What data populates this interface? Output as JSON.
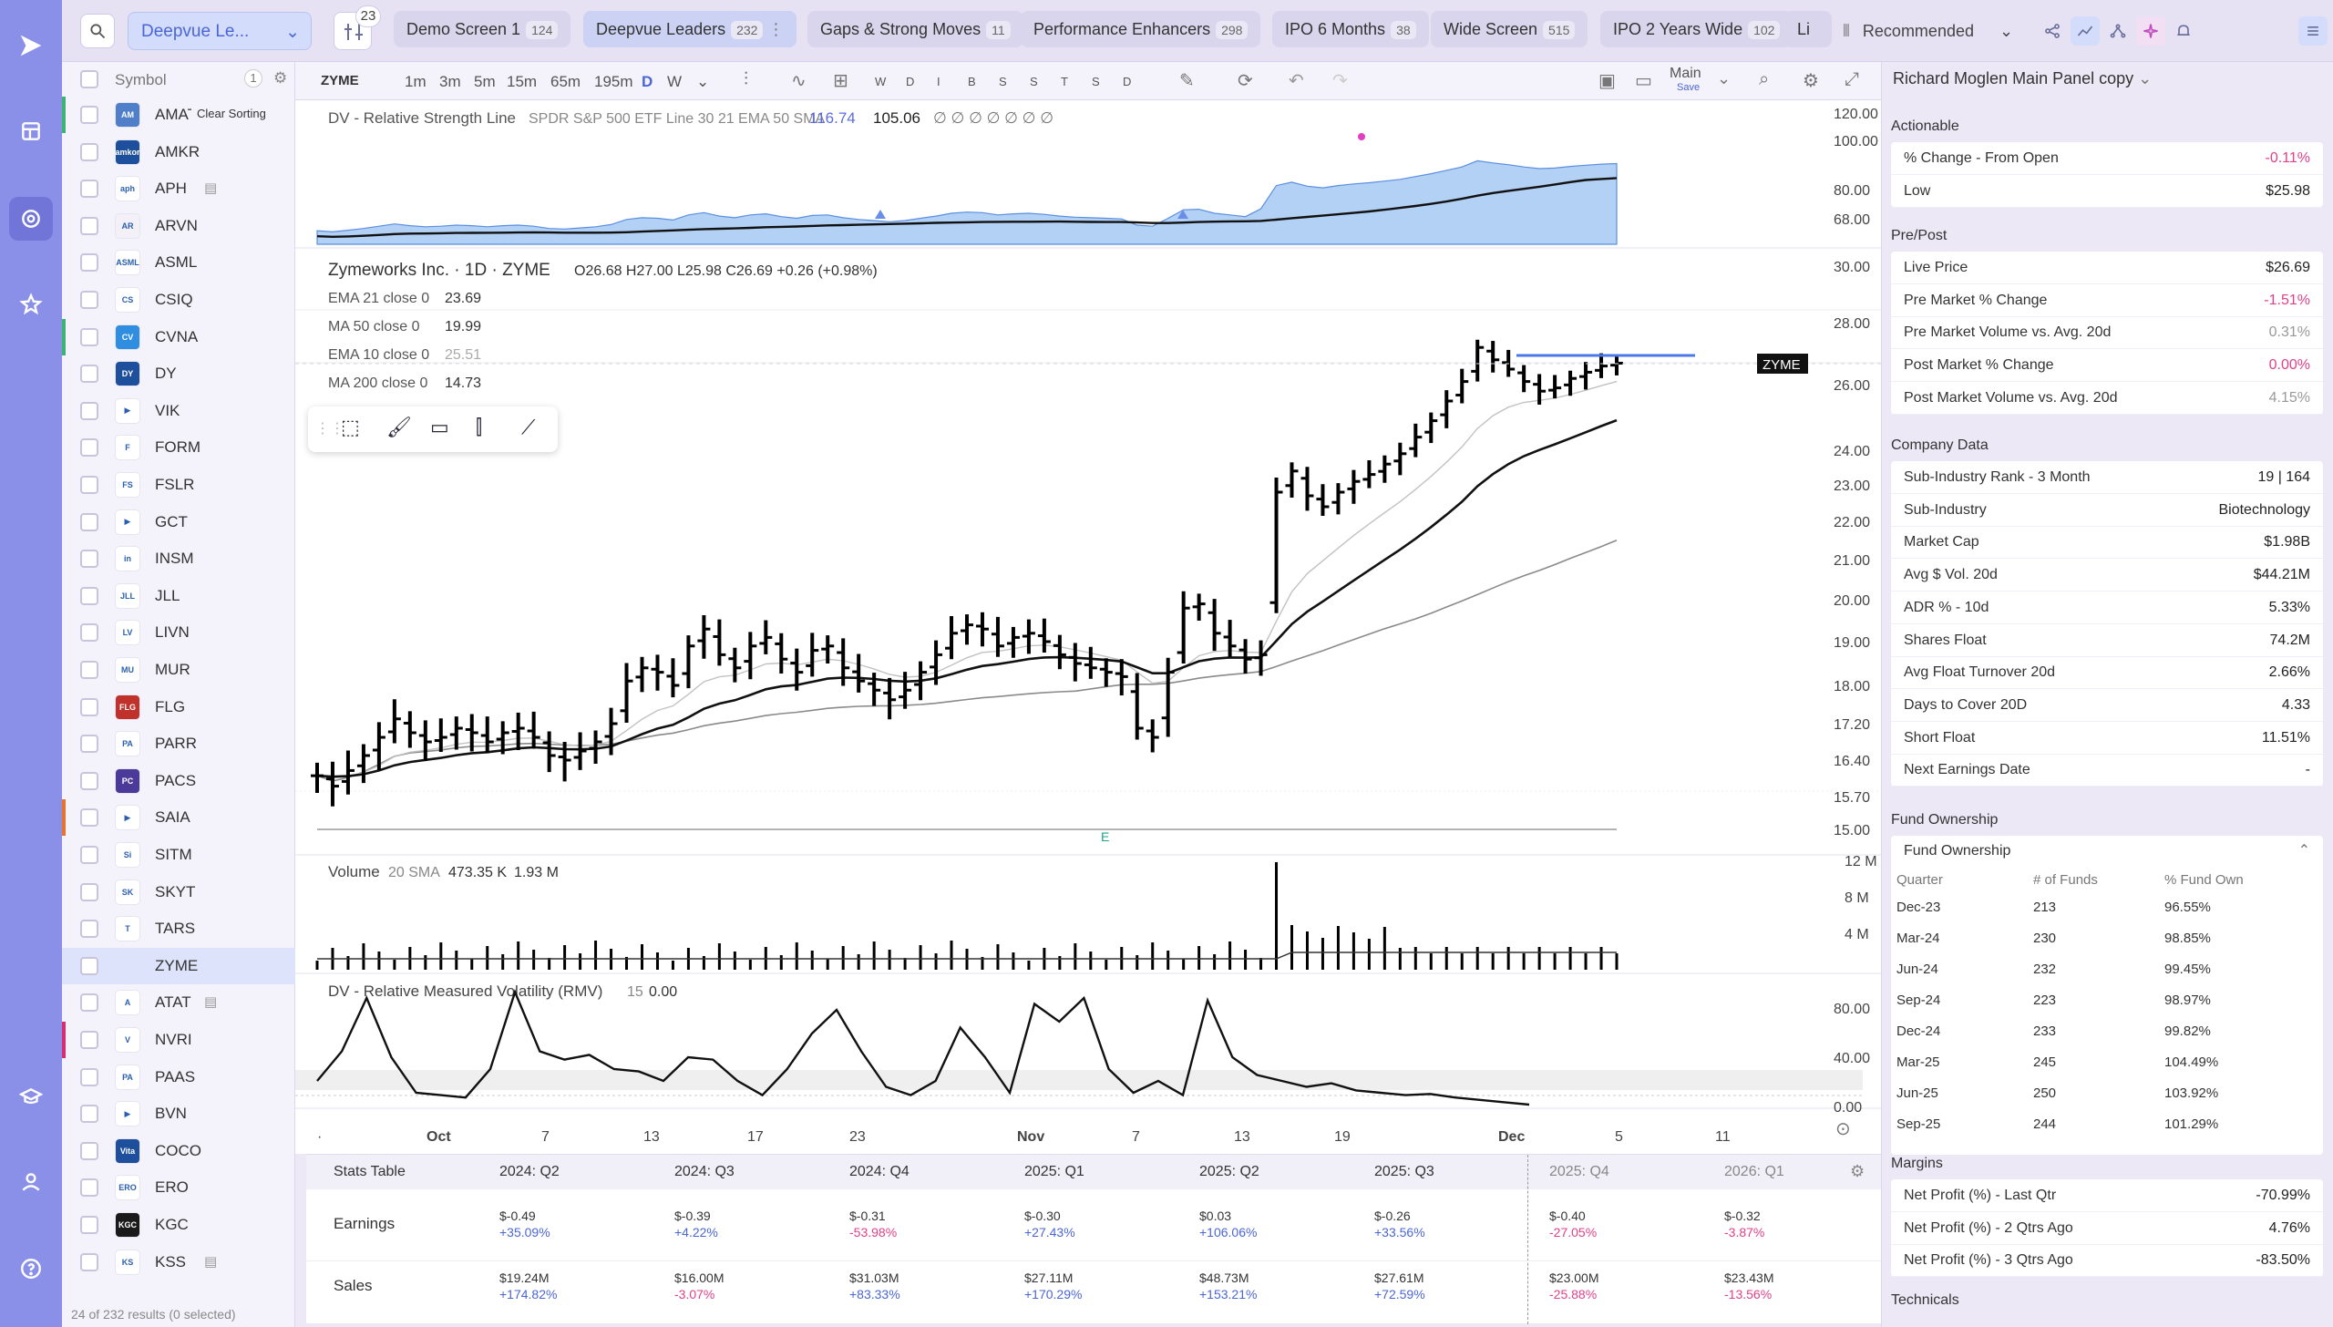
{
  "topbar": {
    "screen_select": "Deepvue Le...",
    "filter_count": "23",
    "tabs": [
      {
        "label": "Demo Screen 1",
        "count": "124"
      },
      {
        "label": "Deepvue Leaders",
        "count": "232"
      },
      {
        "label": "Gaps & Strong Moves",
        "count": "11"
      },
      {
        "label": "Performance Enhancers",
        "count": "298"
      },
      {
        "label": "IPO 6 Months",
        "count": "38"
      },
      {
        "label": "Wide Screen",
        "count": "515"
      },
      {
        "label": "IPO 2 Years Wide",
        "count": "102"
      },
      {
        "label": "Li",
        "count": ""
      }
    ],
    "sort_label": "Recommended"
  },
  "watchlist": {
    "header": "Symbol",
    "header_count": "1",
    "tooltip": "Clear Sorting",
    "footer": "24 of 232 results (0 selected)",
    "rows": [
      {
        "sym": "AMAT",
        "logo": "AM",
        "color": "#4f7fc9",
        "bar": "#3cb371"
      },
      {
        "sym": "AMKR",
        "logo": "amkor",
        "color": "#1e4f9c",
        "bar": ""
      },
      {
        "sym": "APH",
        "logo": "aph",
        "color": "#ffffff",
        "bar": "",
        "note": true
      },
      {
        "sym": "ARVN",
        "logo": "AR",
        "color": "#f3f0f8",
        "bar": ""
      },
      {
        "sym": "ASML",
        "logo": "ASML",
        "color": "#ffffff",
        "bar": ""
      },
      {
        "sym": "CSIQ",
        "logo": "CS",
        "color": "#ffffff",
        "bar": ""
      },
      {
        "sym": "CVNA",
        "logo": "CV",
        "color": "#2f8ee0",
        "bar": "#3cb371"
      },
      {
        "sym": "DY",
        "logo": "DY",
        "color": "#1e4f9c",
        "bar": ""
      },
      {
        "sym": "VIK",
        "logo": "▶",
        "color": "#ffffff",
        "bar": ""
      },
      {
        "sym": "FORM",
        "logo": "F",
        "color": "#ffffff",
        "bar": ""
      },
      {
        "sym": "FSLR",
        "logo": "FS",
        "color": "#ffffff",
        "bar": ""
      },
      {
        "sym": "GCT",
        "logo": "▶",
        "color": "#ffffff",
        "bar": ""
      },
      {
        "sym": "INSM",
        "logo": "in",
        "color": "#ffffff",
        "bar": ""
      },
      {
        "sym": "JLL",
        "logo": "JLL",
        "color": "#ffffff",
        "bar": ""
      },
      {
        "sym": "LIVN",
        "logo": "LV",
        "color": "#ffffff",
        "bar": ""
      },
      {
        "sym": "MUR",
        "logo": "MU",
        "color": "#ffffff",
        "bar": ""
      },
      {
        "sym": "FLG",
        "logo": "FLG",
        "color": "#c0312b",
        "bar": ""
      },
      {
        "sym": "PARR",
        "logo": "PA",
        "color": "#ffffff",
        "bar": ""
      },
      {
        "sym": "PACS",
        "logo": "PC",
        "color": "#4b3a9a",
        "bar": ""
      },
      {
        "sym": "SAIA",
        "logo": "▶",
        "color": "#ffffff",
        "bar": "#e8742c"
      },
      {
        "sym": "SITM",
        "logo": "Si",
        "color": "#ffffff",
        "bar": ""
      },
      {
        "sym": "SKYT",
        "logo": "SK",
        "color": "#ffffff",
        "bar": ""
      },
      {
        "sym": "TARS",
        "logo": "T",
        "color": "#ffffff",
        "bar": ""
      },
      {
        "sym": "ZYME",
        "logo": "",
        "color": "#dde3fb",
        "bar": "",
        "selected": true
      },
      {
        "sym": "ATAT",
        "logo": "A",
        "color": "#ffffff",
        "bar": "",
        "note": true
      },
      {
        "sym": "NVRI",
        "logo": "V",
        "color": "#ffffff",
        "bar": "#d62e6f"
      },
      {
        "sym": "PAAS",
        "logo": "PA",
        "color": "#ffffff",
        "bar": ""
      },
      {
        "sym": "BVN",
        "logo": "▶",
        "color": "#ffffff",
        "bar": ""
      },
      {
        "sym": "COCO",
        "logo": "Vita",
        "color": "#1d4f9c",
        "bar": ""
      },
      {
        "sym": "ERO",
        "logo": "ERO",
        "color": "#ffffff",
        "bar": ""
      },
      {
        "sym": "KGC",
        "logo": "KGC",
        "color": "#1a1a1a",
        "bar": ""
      },
      {
        "sym": "KSS",
        "logo": "KS",
        "color": "#ffffff",
        "bar": "",
        "note": true
      }
    ]
  },
  "chart_toolbar": {
    "symbol": "ZYME",
    "intervals": [
      "1m",
      "3m",
      "5m",
      "15m",
      "65m",
      "195m",
      "D",
      "W"
    ],
    "letters": [
      "W",
      "D",
      "I",
      "B",
      "S",
      "S",
      "T",
      "S",
      "D"
    ],
    "layout": "Main",
    "save": "Save"
  },
  "chart": {
    "rs_line": {
      "label": "DV - Relative Strength Line",
      "params": "SPDR S&P 500 ETF Line 30 21 EMA 50 SMA",
      "v1": "116.74",
      "v2": "105.06",
      "tail": "∅ ∅ ∅ ∅ ∅ ∅ ∅"
    },
    "title": "Zymeworks Inc. · 1D · ZYME",
    "ohlc": "O26.68  H27.00  L25.98  C26.69  +0.26 (+0.98%)",
    "mas": [
      {
        "label": "EMA 21 close 0",
        "value": "23.69"
      },
      {
        "label": "MA 50 close 0",
        "value": "19.99"
      },
      {
        "label": "EMA 10 close 0",
        "value": "25.51"
      },
      {
        "label": "MA 200 close 0",
        "value": "14.73"
      }
    ],
    "ticker_tag": "ZYME",
    "earnings_marker": "E",
    "volume": {
      "label": "Volume",
      "params": "20 SMA",
      "v1": "473.35 K",
      "v2": "1.93 M"
    },
    "rmv": {
      "label": "DV - Relative Measured Volatility (RMV)",
      "params": "15",
      "value": "0.00"
    },
    "rs_axis": [
      "120.00",
      "100.00",
      "80.00",
      "68.00"
    ],
    "price_axis": [
      "30.00",
      "28.00",
      "26.00",
      "24.00",
      "23.00",
      "22.00",
      "21.00",
      "20.00",
      "19.00",
      "18.00",
      "17.20",
      "16.40",
      "15.70",
      "15.00"
    ],
    "vol_axis": [
      "12 M",
      "8 M",
      "4 M"
    ],
    "rmv_axis": [
      "80.00",
      "40.00",
      "0.00"
    ],
    "time_axis": [
      "Oct",
      "7",
      "13",
      "17",
      "23",
      "Nov",
      "7",
      "13",
      "19",
      "Dec",
      "5",
      "11"
    ]
  },
  "chart_data": {
    "type": "bar",
    "x_labels": [
      "Oct",
      "7",
      "13",
      "17",
      "23",
      "Nov",
      "7",
      "13",
      "19",
      "Dec",
      "5",
      "11"
    ],
    "ohlc_last": {
      "open": 26.68,
      "high": 27.0,
      "low": 25.98,
      "close": 26.69,
      "change": 0.26,
      "change_pct": 0.98
    },
    "closes": [
      16.1,
      15.9,
      16.2,
      16.5,
      16.9,
      17.3,
      17.0,
      16.8,
      16.9,
      17.1,
      17.0,
      16.8,
      17.0,
      17.1,
      16.9,
      16.5,
      16.4,
      16.6,
      16.8,
      17.2,
      18.1,
      18.4,
      18.3,
      18.0,
      18.9,
      19.3,
      18.7,
      18.4,
      18.9,
      19.1,
      18.6,
      18.3,
      18.8,
      18.9,
      18.4,
      18.1,
      17.9,
      17.7,
      17.9,
      18.3,
      18.7,
      19.2,
      19.4,
      19.3,
      18.9,
      19.1,
      19.2,
      19.0,
      18.7,
      18.5,
      18.4,
      18.3,
      18.2,
      17.1,
      16.9,
      18.3,
      19.8,
      19.9,
      19.2,
      18.9,
      18.6,
      18.7,
      22.8,
      23.4,
      22.7,
      22.4,
      22.8,
      23.1,
      23.3,
      23.6,
      23.9,
      24.4,
      24.9,
      25.5,
      26.1,
      27.2,
      26.8,
      26.5,
      26.1,
      25.8,
      25.9,
      26.2,
      26.4,
      26.6,
      26.69
    ],
    "ema21_last": 23.69,
    "ma50_last": 19.99,
    "ema10_last": 25.51,
    "ma200_last": 14.73,
    "volume_sma20": "473.35 K",
    "volume_last": "1.93 M",
    "rmv_last": 0.0
  },
  "stats": {
    "header": "Stats Table",
    "quarters": [
      "2024: Q2",
      "2024: Q3",
      "2024: Q4",
      "2025: Q1",
      "2025: Q2",
      "2025: Q3",
      "2025: Q4",
      "2026: Q1"
    ],
    "rows": [
      {
        "label": "Earnings",
        "values": [
          "$-0.49",
          "$-0.39",
          "$-0.31",
          "$-0.30",
          "$0.03",
          "$-0.26",
          "$-0.40",
          "$-0.32"
        ],
        "changes": [
          "+35.09%",
          "+4.22%",
          "-53.98%",
          "+27.43%",
          "+106.06%",
          "+33.56%",
          "-27.05%",
          "-3.87%"
        ]
      },
      {
        "label": "Sales",
        "values": [
          "$19.24M",
          "$16.00M",
          "$31.03M",
          "$27.11M",
          "$48.73M",
          "$27.61M",
          "$23.00M",
          "$23.43M"
        ],
        "changes": [
          "+174.82%",
          "-3.07%",
          "+83.33%",
          "+170.29%",
          "+153.21%",
          "+72.59%",
          "-25.88%",
          "-13.56%"
        ]
      }
    ]
  },
  "right_panel": {
    "title": "Richard Moglen Main Panel copy",
    "actionable": {
      "header": "Actionable",
      "items": [
        {
          "k": "% Change - From Open",
          "v": "-0.11%",
          "red": true
        },
        {
          "k": "Low",
          "v": "$25.98"
        }
      ]
    },
    "prepost": {
      "header": "Pre/Post",
      "items": [
        {
          "k": "Live Price",
          "v": "$26.69"
        },
        {
          "k": "Pre Market % Change",
          "v": "-1.51%",
          "red": true
        },
        {
          "k": "Pre Market Volume vs. Avg. 20d",
          "v": "0.31%",
          "muted": true
        },
        {
          "k": "Post Market % Change",
          "v": "0.00%",
          "red": true
        },
        {
          "k": "Post Market Volume vs. Avg. 20d",
          "v": "4.15%",
          "muted": true
        }
      ]
    },
    "company": {
      "header": "Company Data",
      "items": [
        {
          "k": "Sub-Industry Rank - 3 Month",
          "v": "19 | 164"
        },
        {
          "k": "Sub-Industry",
          "v": "Biotechnology"
        },
        {
          "k": "Market Cap",
          "v": "$1.98B"
        },
        {
          "k": "Avg $ Vol. 20d",
          "v": "$44.21M"
        },
        {
          "k": "ADR % - 10d",
          "v": "5.33%"
        },
        {
          "k": "Shares Float",
          "v": "74.2M"
        },
        {
          "k": "Avg Float Turnover 20d",
          "v": "2.66%"
        },
        {
          "k": "Days to Cover 20D",
          "v": "4.33"
        },
        {
          "k": "Short Float",
          "v": "11.51%"
        },
        {
          "k": "Next Earnings Date",
          "v": "-"
        }
      ]
    },
    "fund": {
      "header": "Fund Ownership",
      "sub": "Fund Ownership",
      "cols": [
        "Quarter",
        "# of Funds",
        "% Fund Own"
      ],
      "rows": [
        [
          "Dec-23",
          "213",
          "96.55%"
        ],
        [
          "Mar-24",
          "230",
          "98.85%"
        ],
        [
          "Jun-24",
          "232",
          "99.45%"
        ],
        [
          "Sep-24",
          "223",
          "98.97%"
        ],
        [
          "Dec-24",
          "233",
          "99.82%"
        ],
        [
          "Mar-25",
          "245",
          "104.49%"
        ],
        [
          "Jun-25",
          "250",
          "103.92%"
        ],
        [
          "Sep-25",
          "244",
          "101.29%"
        ]
      ]
    },
    "margins": {
      "header": "Margins",
      "items": [
        {
          "k": "Net Profit (%) - Last Qtr",
          "v": "-70.99%"
        },
        {
          "k": "Net Profit (%) - 2 Qtrs Ago",
          "v": "4.76%"
        },
        {
          "k": "Net Profit (%) - 3 Qtrs Ago",
          "v": "-83.50%"
        }
      ]
    },
    "technicals": "Technicals"
  }
}
